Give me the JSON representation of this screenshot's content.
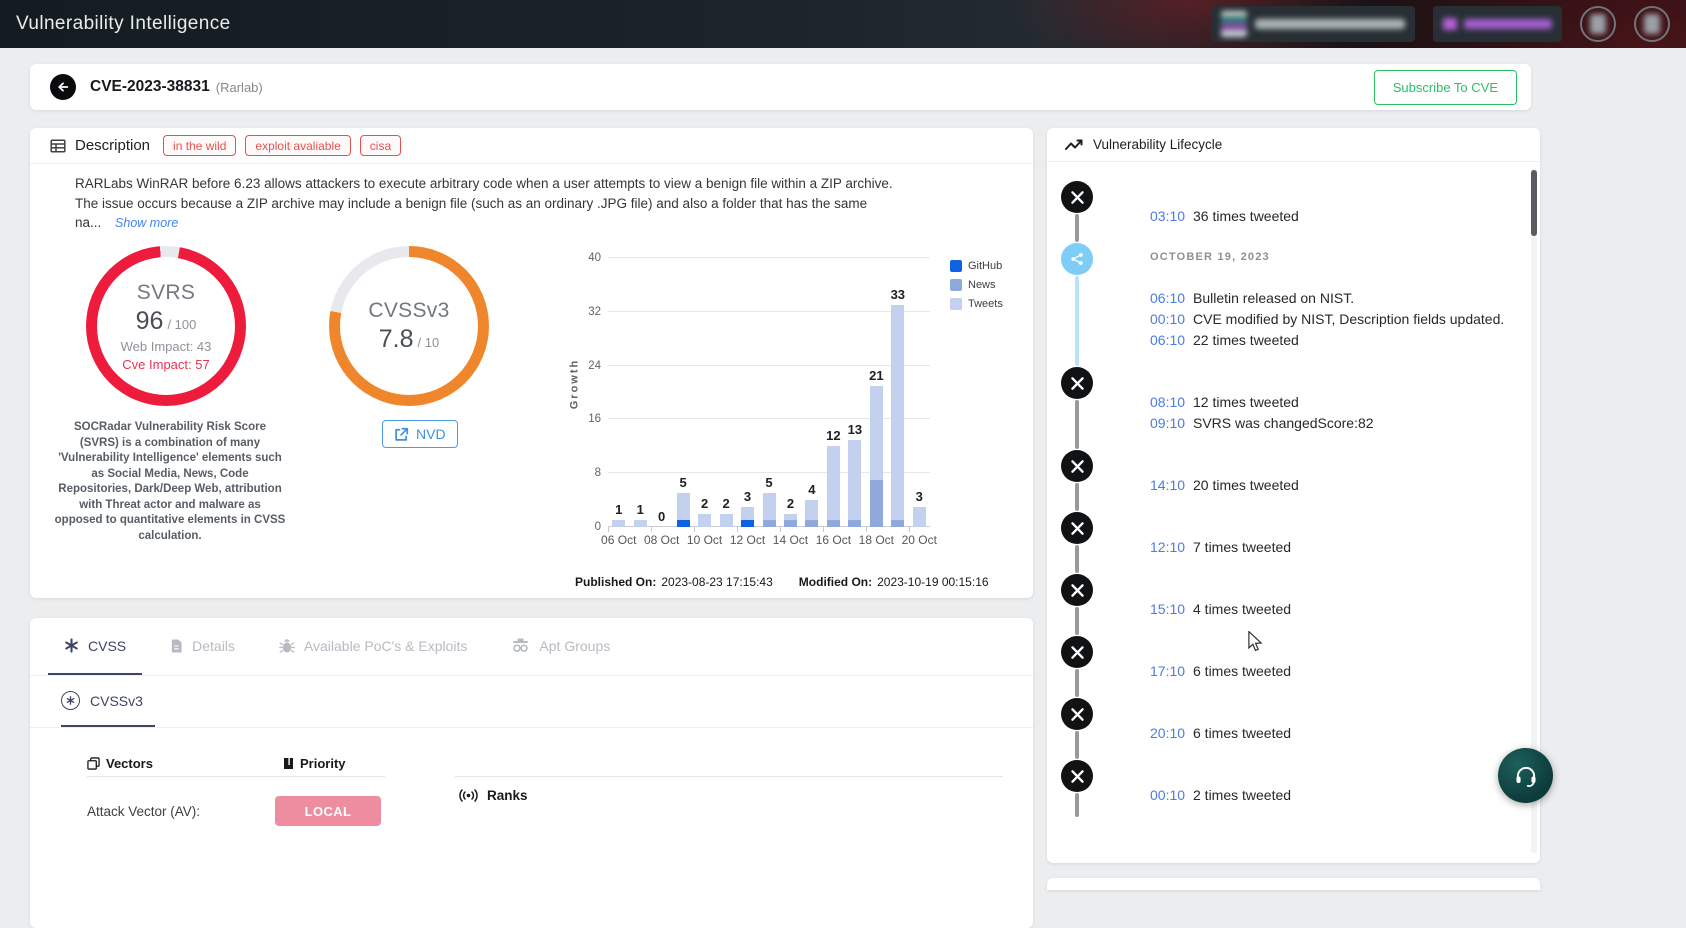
{
  "navbar": {
    "title": "Vulnerability Intelligence"
  },
  "title_bar": {
    "cve_id": "CVE-2023-38831",
    "vendor": "(Rarlab)",
    "subscribe_label": "Subscribe To CVE"
  },
  "description_card": {
    "title": "Description",
    "badges": [
      "in the wild",
      "exploit avaliable",
      "cisa"
    ],
    "text_lines": [
      "RARLabs WinRAR before 6.23 allows attackers to execute arbitrary code when a user attempts to view a benign file within a ZIP archive.",
      "The issue occurs because a ZIP archive may include a benign file (such as an ordinary .JPG file) and also a folder that has the same",
      "na..."
    ],
    "show_more_label": "Show more",
    "svrs_gauge": {
      "label": "SVRS",
      "score": "96",
      "max": "/ 100",
      "web_impact": "Web Impact: 43",
      "cve_impact": "Cve Impact: 57",
      "percent": 96,
      "color": "#ee1c3c",
      "description": "SOCRadar Vulnerability Risk Score (SVRS) is a combination of many 'Vulnerability Intelligence' elements such as Social Media, News, Code Repositories, Dark/Deep Web, attribution with Threat actor and malware as opposed to quantitative elements in CVSS calculation."
    },
    "cvss_gauge": {
      "label": "CVSSv3",
      "score": "7.8",
      "max": "/ 10",
      "percent": 78,
      "color": "#f0862b",
      "nvd_label": "NVD"
    },
    "published_label": "Published On:",
    "published_value": "2023-08-23 17:15:43",
    "modified_label": "Modified On:",
    "modified_value": "2023-10-19 00:15:16"
  },
  "chart_data": {
    "type": "bar",
    "stacked": true,
    "ylabel": "Growth",
    "ylim": [
      0,
      40
    ],
    "yticks": [
      0,
      8,
      16,
      24,
      32,
      40
    ],
    "grid": true,
    "legend_position": "right",
    "categories": [
      "06 Oct",
      "07 Oct",
      "08 Oct",
      "09 Oct",
      "10 Oct",
      "11 Oct",
      "12 Oct",
      "13 Oct",
      "14 Oct",
      "15 Oct",
      "16 Oct",
      "17 Oct",
      "18 Oct",
      "19 Oct",
      "20 Oct"
    ],
    "x_axis_labels_shown": [
      "06 Oct",
      "08 Oct",
      "10 Oct",
      "12 Oct",
      "14 Oct",
      "16 Oct",
      "18 Oct",
      "20 Oct"
    ],
    "series": [
      {
        "name": "GitHub",
        "color": "#0e62e4",
        "values": [
          0,
          0,
          0,
          1,
          0,
          0,
          1,
          0,
          0,
          0,
          0,
          0,
          0,
          0,
          0
        ]
      },
      {
        "name": "News",
        "color": "#8fa9dd",
        "values": [
          0,
          0,
          0,
          0,
          0,
          0,
          0,
          1,
          1,
          1,
          1,
          1,
          7,
          1,
          0
        ]
      },
      {
        "name": "Tweets",
        "color": "#c4d1ee",
        "values": [
          1,
          1,
          0,
          4,
          2,
          2,
          2,
          4,
          1,
          3,
          11,
          12,
          14,
          32,
          3
        ]
      }
    ],
    "totals": [
      1,
      1,
      0,
      5,
      2,
      2,
      3,
      5,
      2,
      4,
      12,
      13,
      21,
      33,
      3
    ]
  },
  "cvss_section": {
    "tabs": [
      {
        "label": "CVSS",
        "icon": "asterisk",
        "active": true
      },
      {
        "label": "Details",
        "icon": "doc",
        "active": false
      },
      {
        "label": "Available PoC's & Exploits",
        "icon": "bug",
        "active": false
      },
      {
        "label": "Apt Groups",
        "icon": "spy",
        "active": false
      }
    ],
    "subtab_label": "CVSSv3",
    "vectors_title": "Vectors",
    "priority_title": "Priority",
    "ranks_title": "Ranks",
    "attack_vector_label": "Attack Vector (AV):",
    "attack_vector_value": "LOCAL",
    "attack_vector_color": "#ee8d9f"
  },
  "lifecycle": {
    "title": "Vulnerability Lifecycle",
    "groups": [
      {
        "icon": "x",
        "rows": [
          {
            "time": "03:10",
            "text": "36 times tweeted"
          }
        ]
      },
      {
        "icon": "date",
        "date_label": "OCTOBER 19, 2023",
        "rows": [
          {
            "time": "06:10",
            "text": "Bulletin released on NIST."
          },
          {
            "time": "00:10",
            "text": "CVE modified by NIST, Description fields updated."
          },
          {
            "time": "06:10",
            "text": "22 times tweeted"
          }
        ]
      },
      {
        "icon": "x",
        "rows": [
          {
            "time": "08:10",
            "text": "12 times tweeted"
          },
          {
            "time": "09:10",
            "text": "SVRS was changedScore:82"
          }
        ]
      },
      {
        "icon": "x",
        "rows": [
          {
            "time": "14:10",
            "text": "20 times tweeted"
          }
        ]
      },
      {
        "icon": "x",
        "rows": [
          {
            "time": "12:10",
            "text": "7 times tweeted"
          }
        ]
      },
      {
        "icon": "x",
        "rows": [
          {
            "time": "15:10",
            "text": "4 times tweeted"
          }
        ]
      },
      {
        "icon": "x",
        "rows": [
          {
            "time": "17:10",
            "text": "6 times tweeted"
          }
        ]
      },
      {
        "icon": "x",
        "rows": [
          {
            "time": "20:10",
            "text": "6 times tweeted"
          }
        ]
      },
      {
        "icon": "x",
        "rows": [
          {
            "time": "00:10",
            "text": "2 times tweeted"
          }
        ]
      }
    ]
  }
}
